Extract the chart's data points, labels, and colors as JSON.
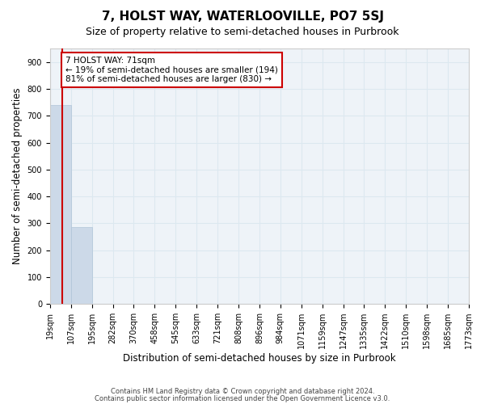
{
  "title": "7, HOLST WAY, WATERLOOVILLE, PO7 5SJ",
  "subtitle": "Size of property relative to semi-detached houses in Purbrook",
  "xlabel": "Distribution of semi-detached houses by size in Purbrook",
  "ylabel": "Number of semi-detached properties",
  "footnote1": "Contains HM Land Registry data © Crown copyright and database right 2024.",
  "footnote2": "Contains public sector information licensed under the Open Government Licence v3.0.",
  "annotation_title": "7 HOLST WAY: 71sqm",
  "annotation_line1": "← 19% of semi-detached houses are smaller (194)",
  "annotation_line2": "81% of semi-detached houses are larger (830) →",
  "bar_color": "#ccd9e8",
  "bar_edge_color": "#b0c4d8",
  "vline_color": "#cc0000",
  "annotation_box_color": "#cc0000",
  "annotation_text_color": "#000000",
  "annotation_bg": "#ffffff",
  "bin_edges": [
    19,
    107,
    195,
    282,
    370,
    458,
    545,
    633,
    721,
    808,
    896,
    984,
    1071,
    1159,
    1247,
    1335,
    1422,
    1510,
    1598,
    1685,
    1773
  ],
  "bin_labels": [
    "19sqm",
    "107sqm",
    "195sqm",
    "282sqm",
    "370sqm",
    "458sqm",
    "545sqm",
    "633sqm",
    "721sqm",
    "808sqm",
    "896sqm",
    "984sqm",
    "1071sqm",
    "1159sqm",
    "1247sqm",
    "1335sqm",
    "1422sqm",
    "1510sqm",
    "1598sqm",
    "1685sqm",
    "1773sqm"
  ],
  "bar_heights": [
    740,
    285,
    0,
    0,
    0,
    0,
    0,
    0,
    0,
    0,
    0,
    0,
    0,
    0,
    0,
    0,
    0,
    0,
    0,
    0
  ],
  "property_size": 71,
  "ylim": [
    0,
    950
  ],
  "yticks": [
    0,
    100,
    200,
    300,
    400,
    500,
    600,
    700,
    800,
    900
  ],
  "grid_color": "#dce8f0",
  "background_color": "#eef3f8",
  "title_fontsize": 11,
  "subtitle_fontsize": 9,
  "axis_fontsize": 8.5,
  "tick_fontsize": 7
}
